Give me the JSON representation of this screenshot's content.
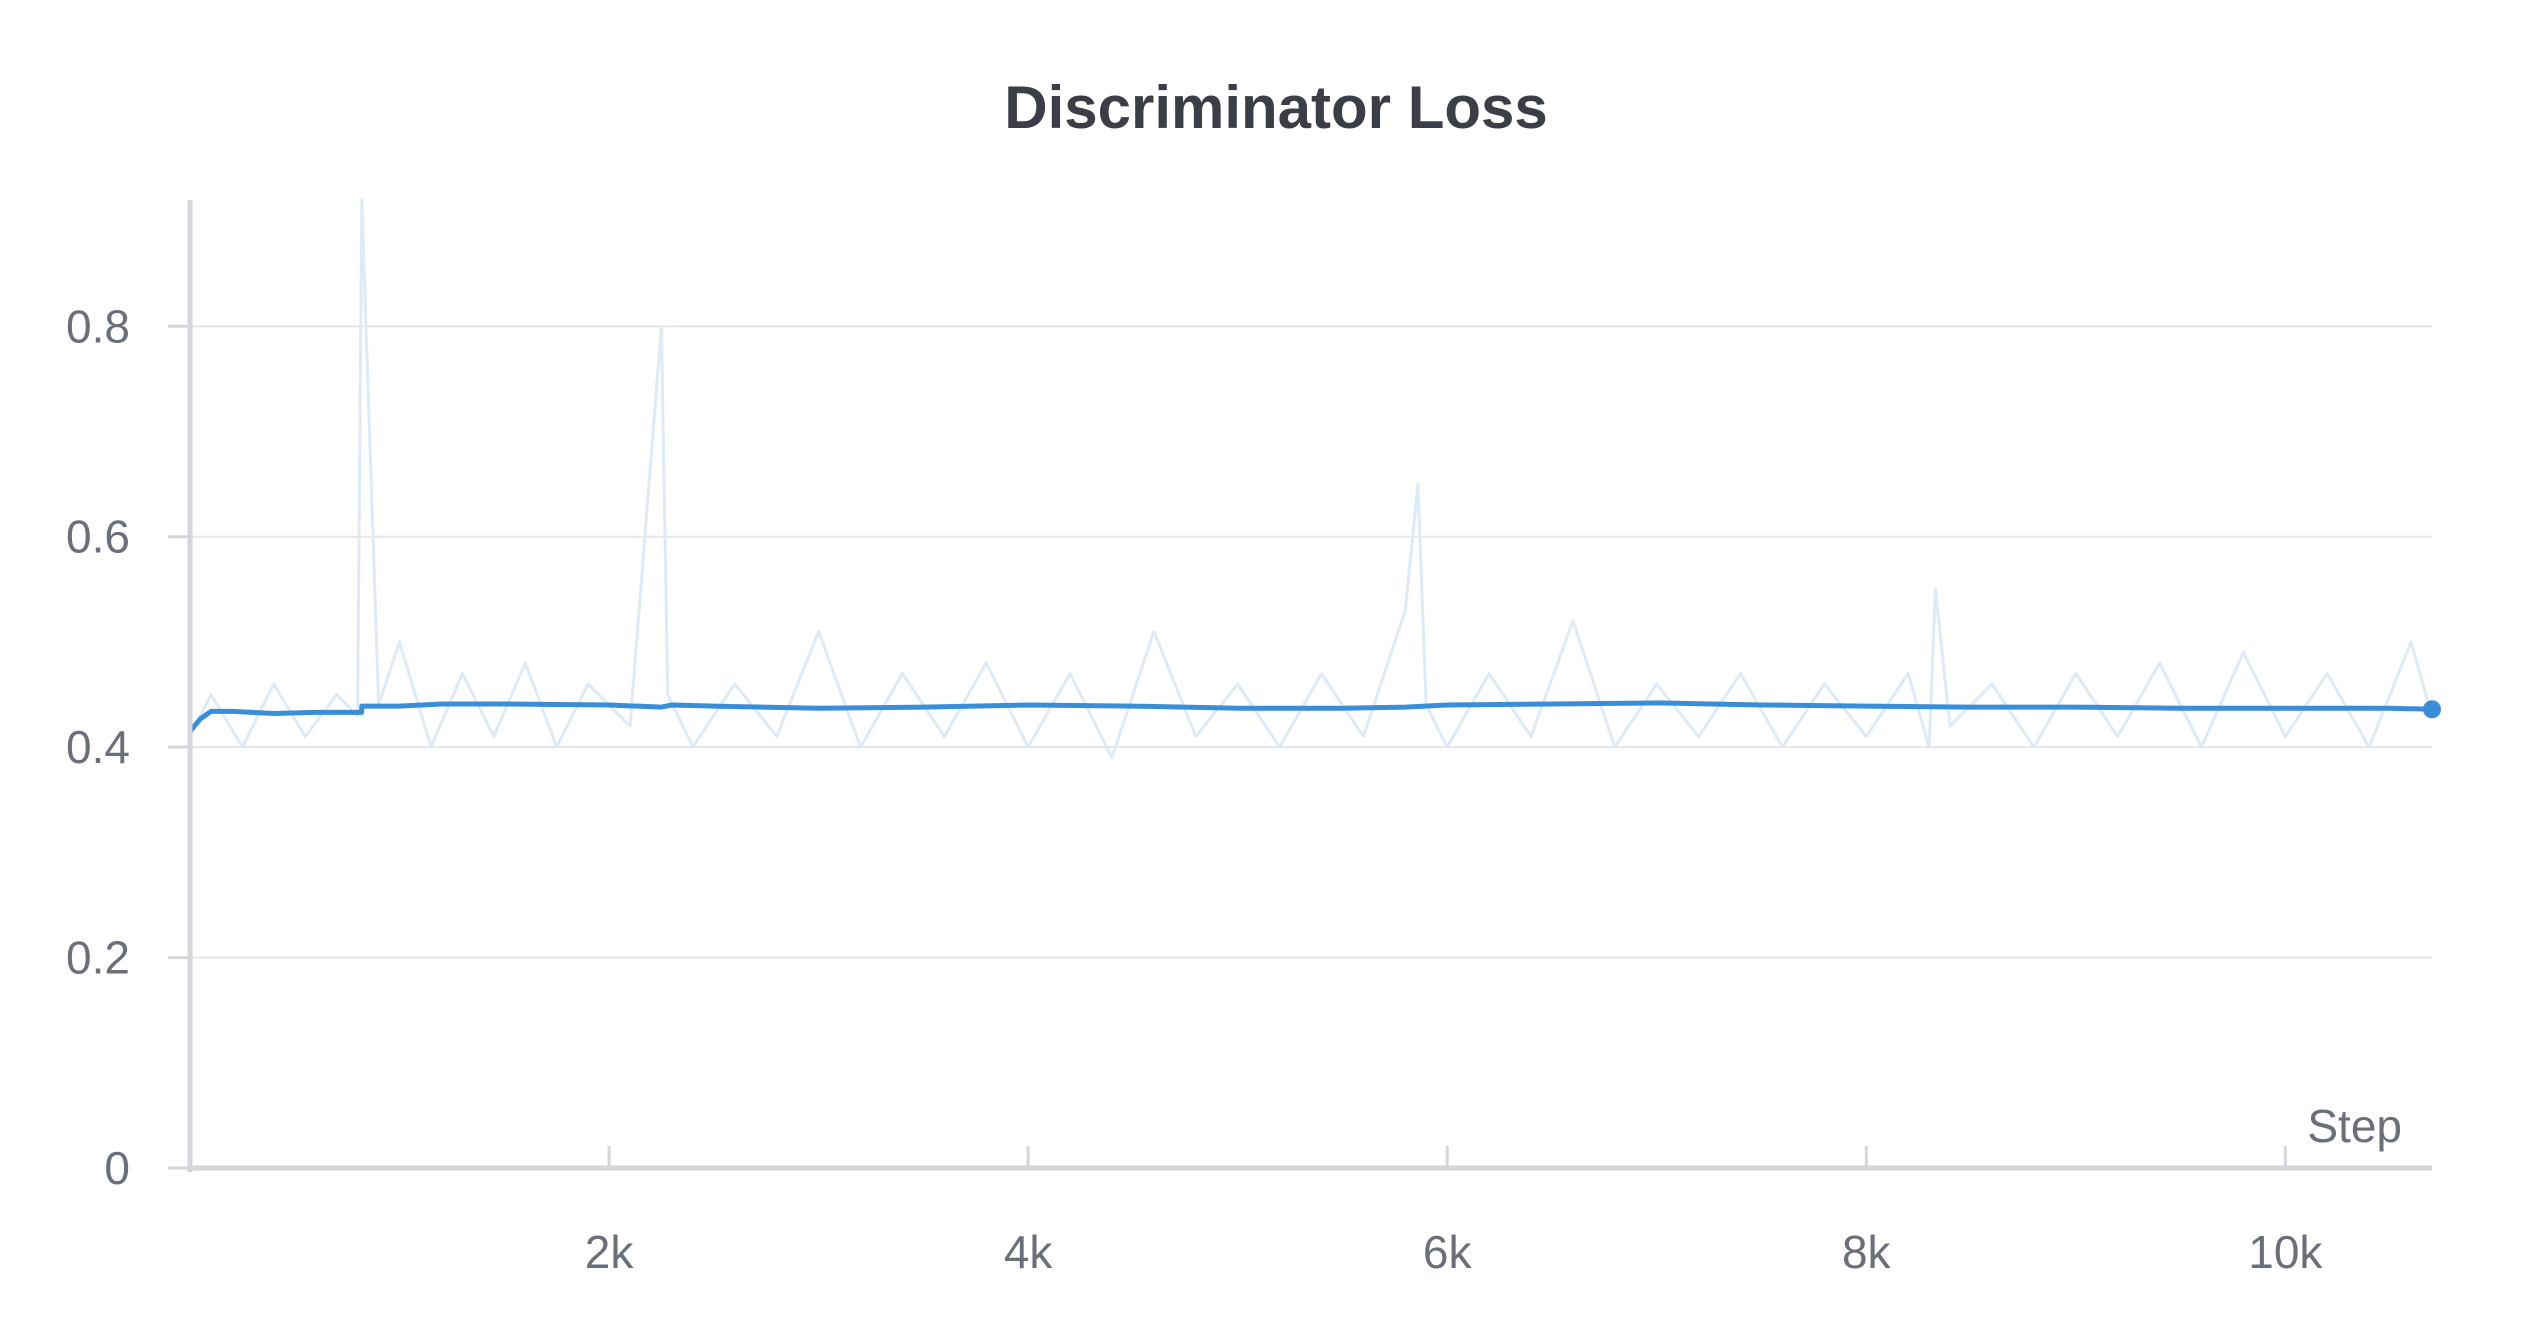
{
  "chart_data": {
    "type": "line",
    "title": "Discriminator Loss",
    "xlabel": "Step",
    "ylabel": "",
    "xlim": [
      0,
      10700
    ],
    "ylim": [
      0,
      0.92
    ],
    "x_ticks": [
      {
        "value": 2000,
        "label": "2k"
      },
      {
        "value": 4000,
        "label": "4k"
      },
      {
        "value": 6000,
        "label": "6k"
      },
      {
        "value": 8000,
        "label": "8k"
      },
      {
        "value": 10000,
        "label": "10k"
      }
    ],
    "y_ticks": [
      {
        "value": 0,
        "label": "0"
      },
      {
        "value": 0.2,
        "label": "0.2"
      },
      {
        "value": 0.4,
        "label": "0.4"
      },
      {
        "value": 0.6,
        "label": "0.6"
      },
      {
        "value": 0.8,
        "label": "0.8"
      }
    ],
    "grid": true,
    "legend": "none",
    "colors": {
      "line": "#3a8ed8",
      "raw": "#dfeaf7",
      "grid": "#e4e6ea",
      "axis": "#d4d6da"
    },
    "series": [
      {
        "style": "raw",
        "x": [
          0,
          100,
          250,
          400,
          550,
          700,
          800,
          820,
          900,
          1000,
          1150,
          1300,
          1450,
          1600,
          1750,
          1900,
          2100,
          2250,
          2280,
          2400,
          2600,
          2800,
          3000,
          3200,
          3400,
          3600,
          3800,
          4000,
          4200,
          4400,
          4600,
          4800,
          5000,
          5200,
          5400,
          5600,
          5800,
          5860,
          5900,
          6000,
          6200,
          6400,
          6600,
          6800,
          7000,
          7200,
          7400,
          7600,
          7800,
          8000,
          8200,
          8300,
          8330,
          8400,
          8600,
          8800,
          9000,
          9200,
          9400,
          9600,
          9800,
          10000,
          10200,
          10400,
          10600,
          10700
        ],
        "y": [
          0.41,
          0.45,
          0.4,
          0.46,
          0.41,
          0.45,
          0.43,
          0.92,
          0.44,
          0.5,
          0.4,
          0.47,
          0.41,
          0.48,
          0.4,
          0.46,
          0.42,
          0.8,
          0.45,
          0.4,
          0.46,
          0.41,
          0.51,
          0.4,
          0.47,
          0.41,
          0.48,
          0.4,
          0.47,
          0.39,
          0.51,
          0.41,
          0.46,
          0.4,
          0.47,
          0.41,
          0.53,
          0.65,
          0.44,
          0.4,
          0.47,
          0.41,
          0.52,
          0.4,
          0.46,
          0.41,
          0.47,
          0.4,
          0.46,
          0.41,
          0.47,
          0.4,
          0.55,
          0.42,
          0.46,
          0.4,
          0.47,
          0.41,
          0.48,
          0.4,
          0.49,
          0.41,
          0.47,
          0.4,
          0.5,
          0.43
        ]
      },
      {
        "style": "smoothed",
        "x": [
          0,
          50,
          100,
          200,
          400,
          600,
          800,
          819,
          820,
          1000,
          1200,
          1500,
          2000,
          2250,
          2300,
          2500,
          3000,
          3500,
          4000,
          4500,
          5000,
          5500,
          5800,
          6000,
          6500,
          7000,
          7500,
          8000,
          8500,
          9000,
          9500,
          10000,
          10500,
          10700
        ],
        "y": [
          0.415,
          0.427,
          0.434,
          0.434,
          0.432,
          0.433,
          0.433,
          0.433,
          0.439,
          0.439,
          0.441,
          0.441,
          0.44,
          0.438,
          0.44,
          0.439,
          0.437,
          0.438,
          0.44,
          0.439,
          0.437,
          0.437,
          0.438,
          0.44,
          0.441,
          0.442,
          0.44,
          0.439,
          0.438,
          0.438,
          0.437,
          0.437,
          0.437,
          0.436
        ]
      }
    ]
  }
}
